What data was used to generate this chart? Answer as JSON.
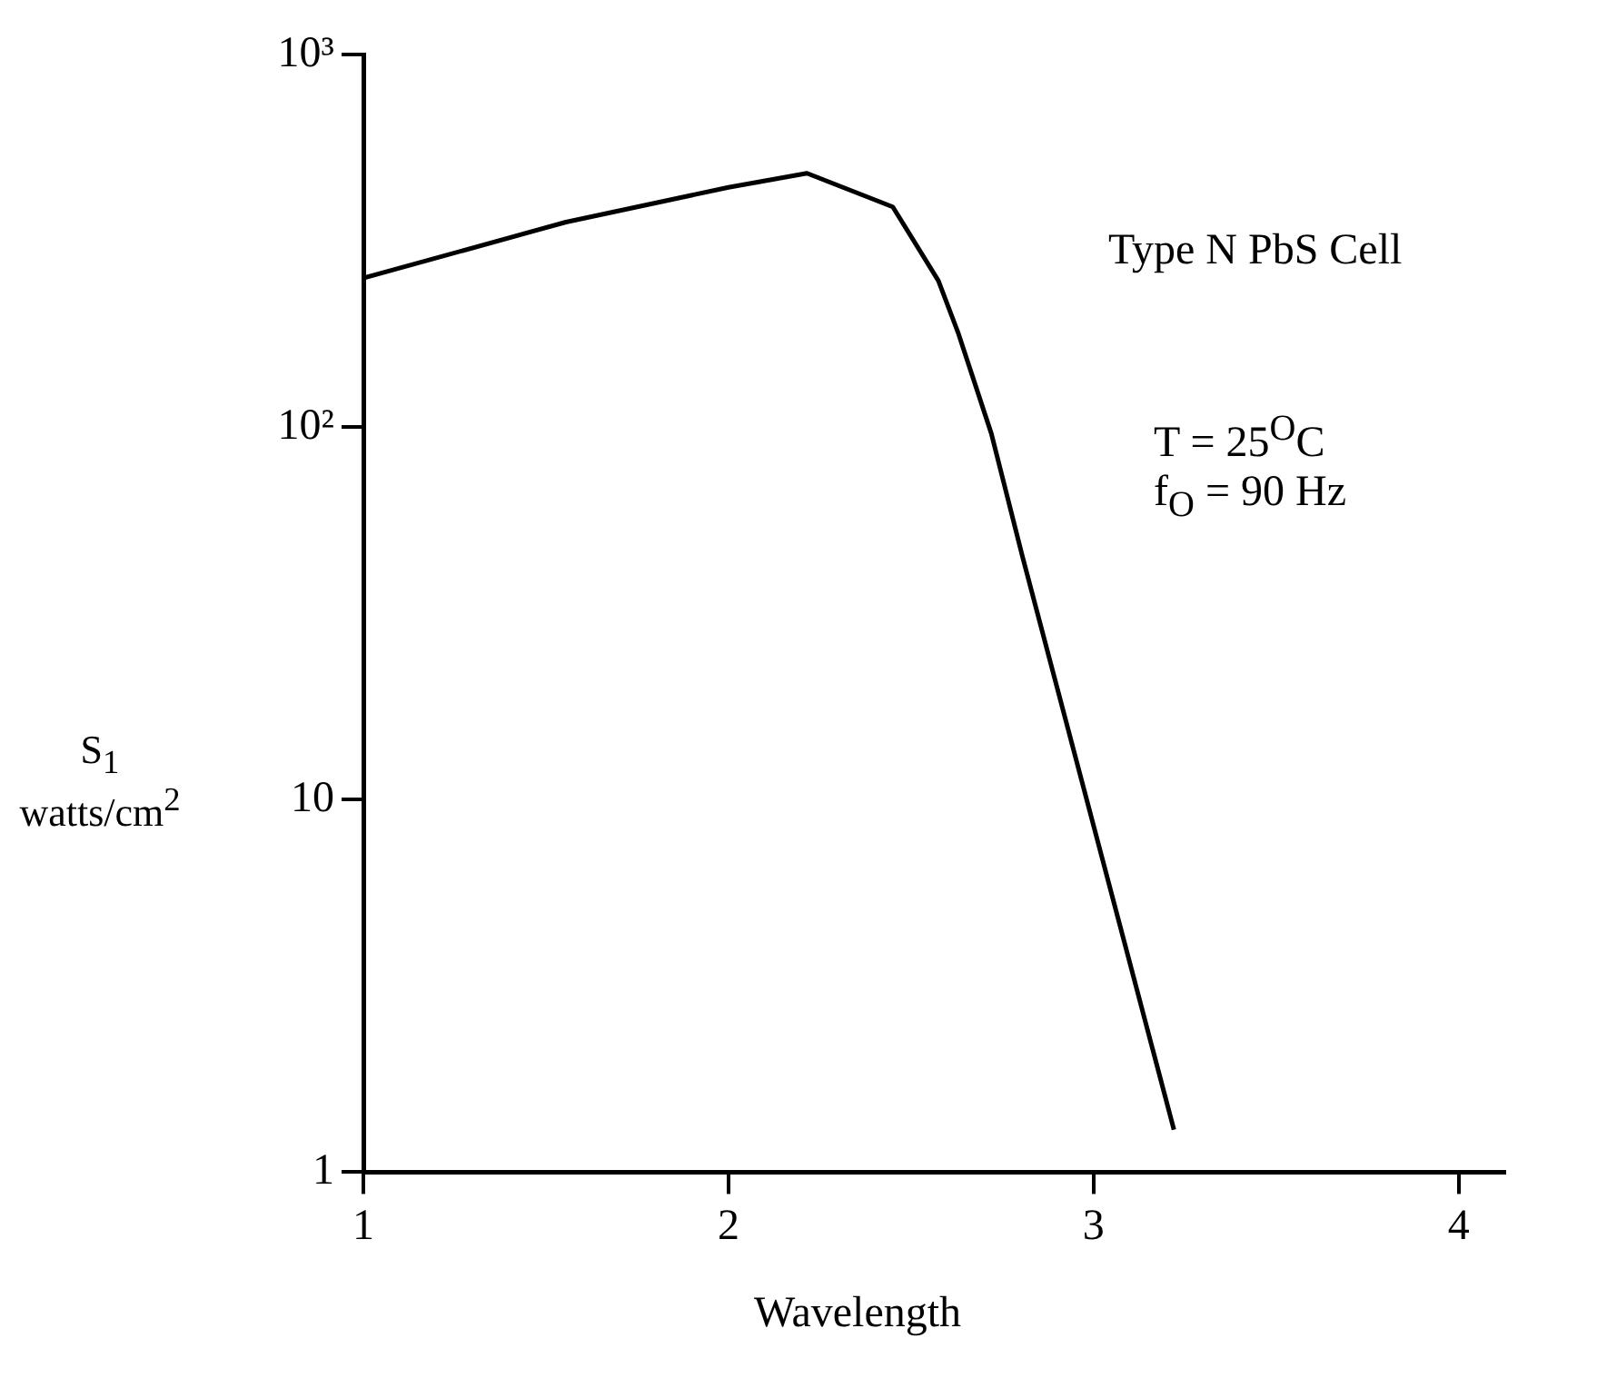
{
  "chart_data": {
    "type": "line",
    "xlabel": "Wavelength",
    "ylabel": "S$_{1}$ watts/cm$^{2}$",
    "annotations": [
      "Type N PbS Cell",
      "T = 25$^{O}$C",
      "f$_{O}$ = 90 Hz"
    ],
    "x": [
      1,
      1.555,
      2.0,
      2.215,
      2.45,
      2.575,
      2.63,
      2.72,
      2.805,
      3.22
    ],
    "series": [
      {
        "color": "#000000",
        "values": [
          251,
          355,
          440,
          480,
          390,
          247,
          178,
          96,
          45,
          1.3
        ]
      }
    ],
    "log": "y",
    "xlim": [
      1,
      4.125
    ],
    "xticks": [
      1,
      2,
      3,
      4
    ],
    "ylim": [
      1,
      1000
    ],
    "yticks": [
      {
        "value": 1,
        "label": "1"
      },
      {
        "value": 10,
        "label": "10"
      },
      {
        "value": 100,
        "label": "10²"
      },
      {
        "value": 1000,
        "label": "10³"
      }
    ],
    "grid": false,
    "legend": false,
    "marker": "none",
    "line_style": "solid"
  }
}
